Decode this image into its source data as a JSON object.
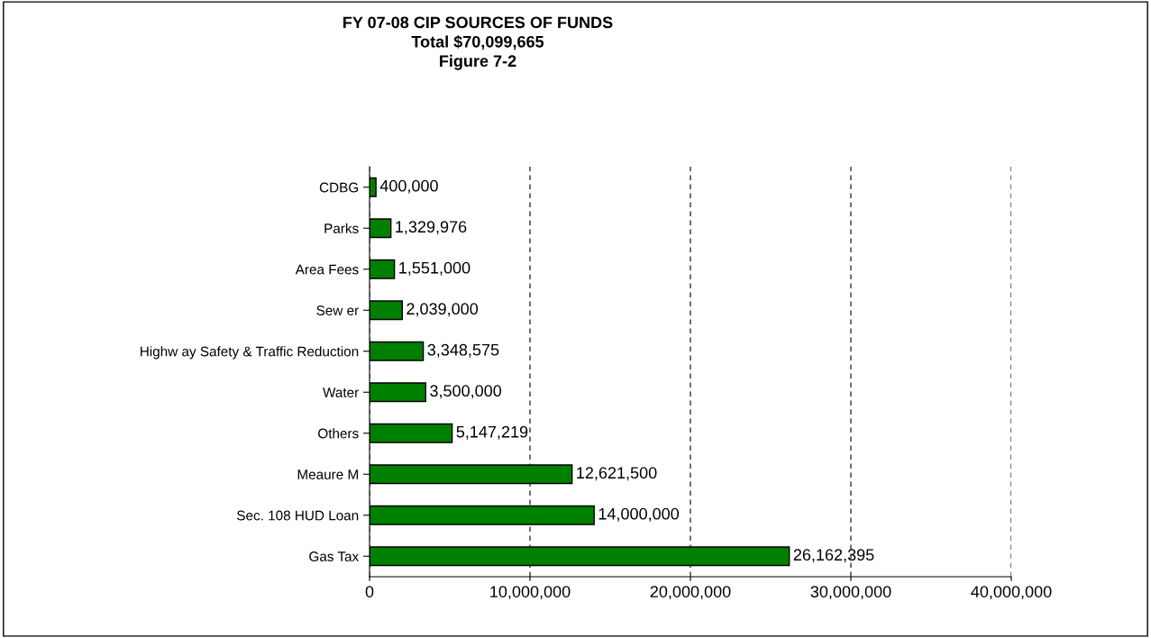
{
  "chart_data": {
    "type": "bar",
    "orientation": "horizontal",
    "title": "FY 07-08 CIP SOURCES OF FUNDS\nTotal $70,099,665\nFigure 7-2",
    "categories": [
      "CDBG",
      "Parks",
      "Area Fees",
      "Sew er",
      "Highw ay Safety & Traffic Reduction",
      "Water",
      "Others",
      "Meaure M",
      "Sec. 108 HUD Loan",
      "Gas Tax"
    ],
    "values": [
      400000,
      1329976,
      1551000,
      2039000,
      3348575,
      3500000,
      5147219,
      12621500,
      14000000,
      26162395
    ],
    "value_labels": [
      "400,000",
      "1,329,976",
      "1,551,000",
      "2,039,000",
      "3,348,575",
      "3,500,000",
      "5,147,219",
      "12,621,500",
      "14,000,000",
      "26,162,395"
    ],
    "color": "#008000",
    "xlim": [
      0,
      40000000
    ],
    "xticks": [
      0,
      {
        "value": 10000000,
        "label": "10,000,000"
      },
      {
        "value": 20000000,
        "label": "20,000,000"
      },
      {
        "value": 30000000,
        "label": "30,000,000"
      },
      {
        "value": 40000000,
        "label": "40,000,000"
      }
    ],
    "grid": "x",
    "line_style": "dashed",
    "legend": false
  }
}
